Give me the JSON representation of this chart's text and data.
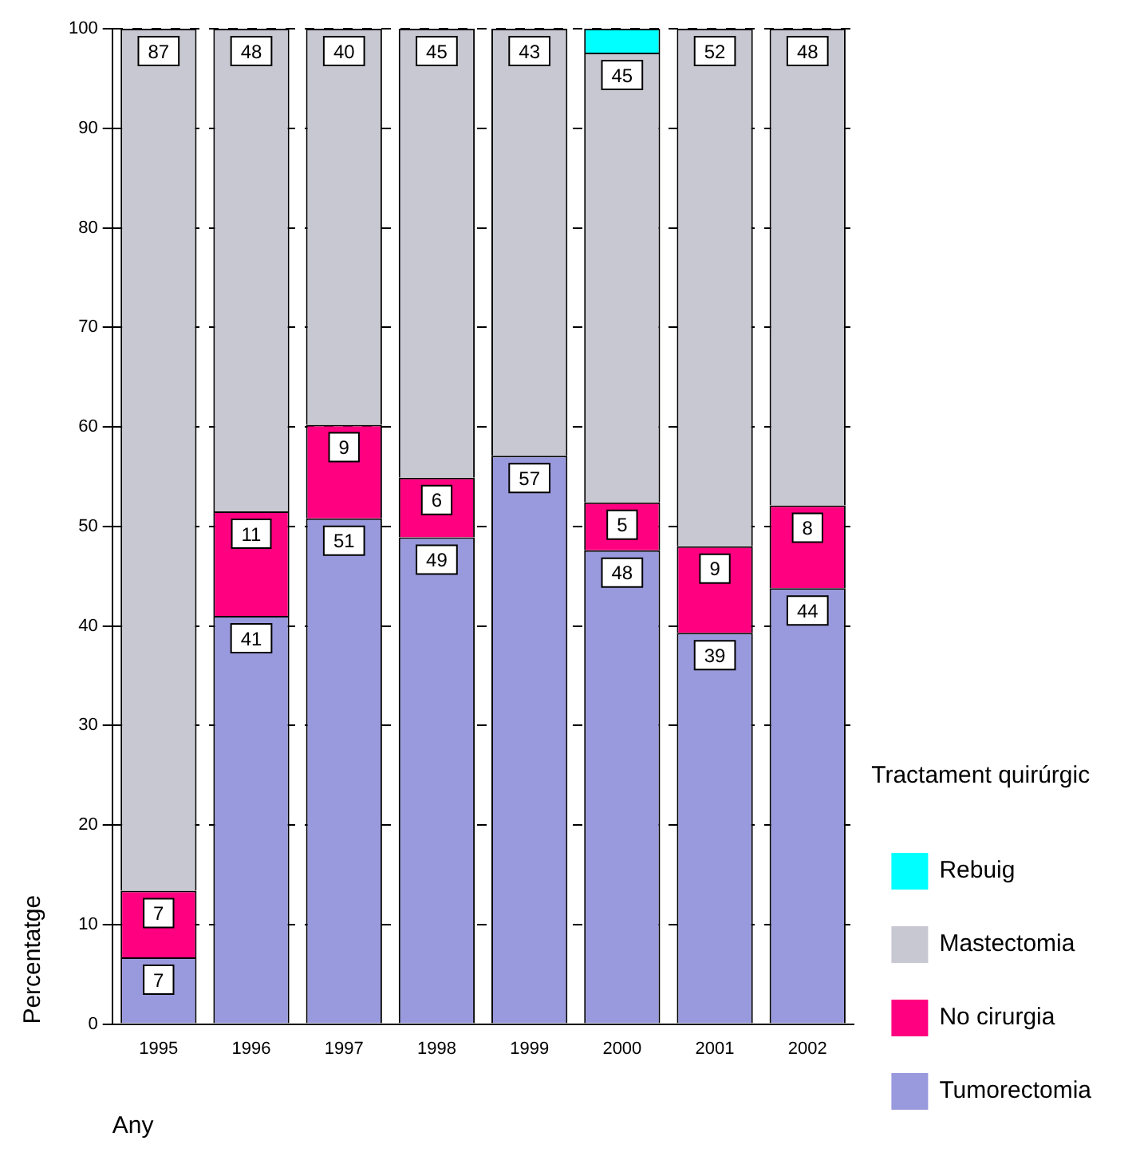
{
  "chart_data": {
    "type": "bar",
    "stacked": true,
    "xlabel": "Any",
    "ylabel": "Percentatge",
    "legend_title": "Tractament quirúrgic",
    "legend": "right",
    "grid": "y",
    "categories": [
      "1995",
      "1996",
      "1997",
      "1998",
      "1999",
      "2000",
      "2001",
      "2002"
    ],
    "ylim": [
      0,
      100
    ],
    "yticks": [
      0,
      10,
      20,
      30,
      40,
      50,
      60,
      70,
      80,
      90,
      100
    ],
    "series": [
      {
        "name": "Tumorectomia",
        "color": "#9999dd",
        "values": [
          6.7,
          41,
          50.8,
          48.9,
          57.1,
          47.6,
          39.3,
          43.8
        ],
        "value_labels": [
          "7",
          "41",
          "51",
          "49",
          "57",
          "48",
          "39",
          "44"
        ]
      },
      {
        "name": "No cirurgia",
        "color": "#ff0080",
        "values": [
          6.7,
          10.5,
          9.4,
          6,
          0,
          4.8,
          8.7,
          8.3
        ],
        "value_labels": [
          "7",
          "11",
          "9",
          "6",
          null,
          "5",
          "9",
          "8"
        ]
      },
      {
        "name": "Mastectomia",
        "color": "#c8c8d2",
        "values": [
          86.6,
          48.5,
          39.8,
          45.1,
          42.9,
          45.2,
          52,
          47.9
        ],
        "value_labels": [
          "87",
          "48",
          "40",
          "45",
          "43",
          "45",
          "52",
          "48"
        ]
      },
      {
        "name": "Rebuig",
        "color": "#00ffff",
        "values": [
          0,
          0,
          0,
          0,
          0,
          2.4,
          0,
          0
        ],
        "value_labels": [
          null,
          null,
          null,
          null,
          null,
          null,
          null,
          null
        ]
      }
    ]
  }
}
